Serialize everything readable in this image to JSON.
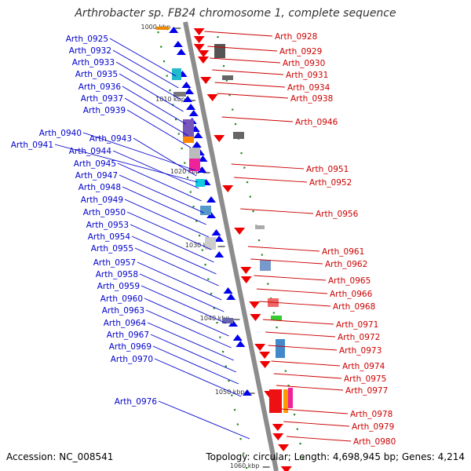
{
  "title": "Arthrobacter sp. FB24 chromosome 1, complete sequence",
  "accession": "Accession: NC_008541",
  "summary": "Topology: circular; Length: 4,698,945 bp; Genes: 4,214",
  "colors": {
    "left_labels": "#0000cc",
    "right_labels": "#cc0000",
    "backbone": "#888888",
    "forward_gene": "#0000ee",
    "reverse_gene": "#ee0000",
    "tick": "#228822"
  },
  "scale_marks": [
    {
      "label": "1000 kbp",
      "kbp": 1000
    },
    {
      "label": "1010 kbp",
      "kbp": 1010
    },
    {
      "label": "1020 kbp",
      "kbp": 1020
    },
    {
      "label": "1030 kbp",
      "kbp": 1030
    },
    {
      "label": "1040 kbp",
      "kbp": 1040
    },
    {
      "label": "1050 kbp",
      "kbp": 1050
    },
    {
      "label": "1060 kbp",
      "kbp": 1060
    }
  ],
  "left_genes": [
    "Arth_0925",
    "Arth_0932",
    "Arth_0933",
    "Arth_0935",
    "Arth_0936",
    "Arth_0937",
    "Arth_0939",
    "Arth_0940",
    "Arth_0941",
    "Arth_0943",
    "Arth_0944",
    "Arth_0945",
    "Arth_0947",
    "Arth_0948",
    "Arth_0949",
    "Arth_0950",
    "Arth_0953",
    "Arth_0954",
    "Arth_0955",
    "Arth_0957",
    "Arth_0958",
    "Arth_0959",
    "Arth_0960",
    "Arth_0963",
    "Arth_0964",
    "Arth_0967",
    "Arth_0969",
    "Arth_0970",
    "Arth_0976"
  ],
  "right_genes": [
    "Arth_0928",
    "Arth_0929",
    "Arth_0930",
    "Arth_0931",
    "Arth_0934",
    "Arth_0938",
    "Arth_0946",
    "Arth_0951",
    "Arth_0952",
    "Arth_0956",
    "Arth_0961",
    "Arth_0962",
    "Arth_0965",
    "Arth_0966",
    "Arth_0968",
    "Arth_0971",
    "Arth_0972",
    "Arth_0973",
    "Arth_0974",
    "Arth_0975",
    "Arth_0977",
    "Arth_0978",
    "Arth_0979",
    "Arth_0980"
  ]
}
